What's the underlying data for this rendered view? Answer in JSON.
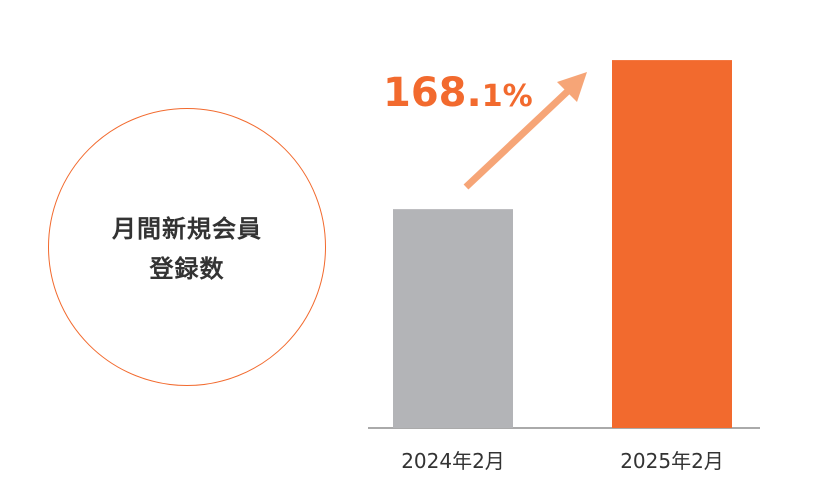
{
  "colors": {
    "accent": "#f26a2e",
    "arrow": "#f6a577",
    "bar_previous": "#b3b4b7",
    "bar_current": "#f26a2e",
    "text": "#333333",
    "axis": "#555555"
  },
  "circle_label": {
    "line1": "月間新規会員",
    "line2": "登録数"
  },
  "growth": {
    "main": "168.",
    "decimal": "1%"
  },
  "chart_data": {
    "type": "bar",
    "categories": [
      "2024年2月",
      "2025年2月"
    ],
    "values": [
      100,
      168.1
    ],
    "ylim": [
      0,
      175
    ],
    "title": "",
    "xlabel": "",
    "ylabel": "",
    "grid": false,
    "annotation": "168.1%"
  }
}
